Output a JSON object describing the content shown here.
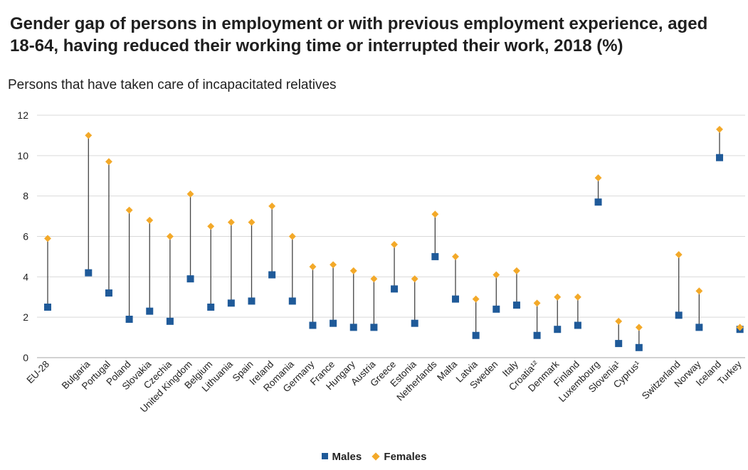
{
  "chart_data": {
    "type": "scatter",
    "title": "Gender gap of persons in employment or with previous employment experience, aged 18-64, having reduced their working time or interrupted their work, 2018 (%)",
    "subtitle": "Persons that have taken care of incapacitated relatives",
    "ylim": [
      0,
      12
    ],
    "yticks": [
      0,
      2,
      4,
      6,
      8,
      10,
      12
    ],
    "grid": true,
    "legend_position": "bottom-center",
    "categories": [
      "EU-28",
      "Bulgaria",
      "Portugal",
      "Poland",
      "Slovakia",
      "Czechia",
      "United Kingdom",
      "Belgium",
      "Lithuania",
      "Spain",
      "Ireland",
      "Romania",
      "Germany",
      "France",
      "Hungary",
      "Austria",
      "Greece",
      "Estonia",
      "Netherlands",
      "Malta",
      "Latvia",
      "Sweden",
      "Italy",
      "Croatia¹²",
      "Denmark",
      "Finland",
      "Luxembourg",
      "Slovenia¹",
      "Cyprus¹",
      "Switzerland",
      "Norway",
      "Iceland",
      "Turkey"
    ],
    "series": [
      {
        "name": "Males",
        "color": "#1f5a99",
        "marker": "square",
        "values": [
          2.5,
          4.2,
          3.2,
          1.9,
          2.3,
          1.8,
          3.9,
          2.5,
          2.7,
          2.8,
          4.1,
          2.8,
          1.6,
          1.7,
          1.5,
          1.5,
          3.4,
          1.7,
          5.0,
          2.9,
          1.1,
          2.4,
          2.6,
          1.1,
          1.4,
          1.6,
          7.7,
          0.7,
          0.5,
          2.1,
          1.5,
          9.9,
          1.4
        ]
      },
      {
        "name": "Females",
        "color": "#f3a929",
        "marker": "diamond",
        "values": [
          5.9,
          11.0,
          9.7,
          7.3,
          6.8,
          6.0,
          8.1,
          6.5,
          6.7,
          6.7,
          7.5,
          6.0,
          4.5,
          4.6,
          4.3,
          3.9,
          5.6,
          3.9,
          7.1,
          5.0,
          2.9,
          4.1,
          4.3,
          2.7,
          3.0,
          3.0,
          8.9,
          1.8,
          1.5,
          5.1,
          3.3,
          11.3,
          1.5
        ]
      }
    ]
  }
}
